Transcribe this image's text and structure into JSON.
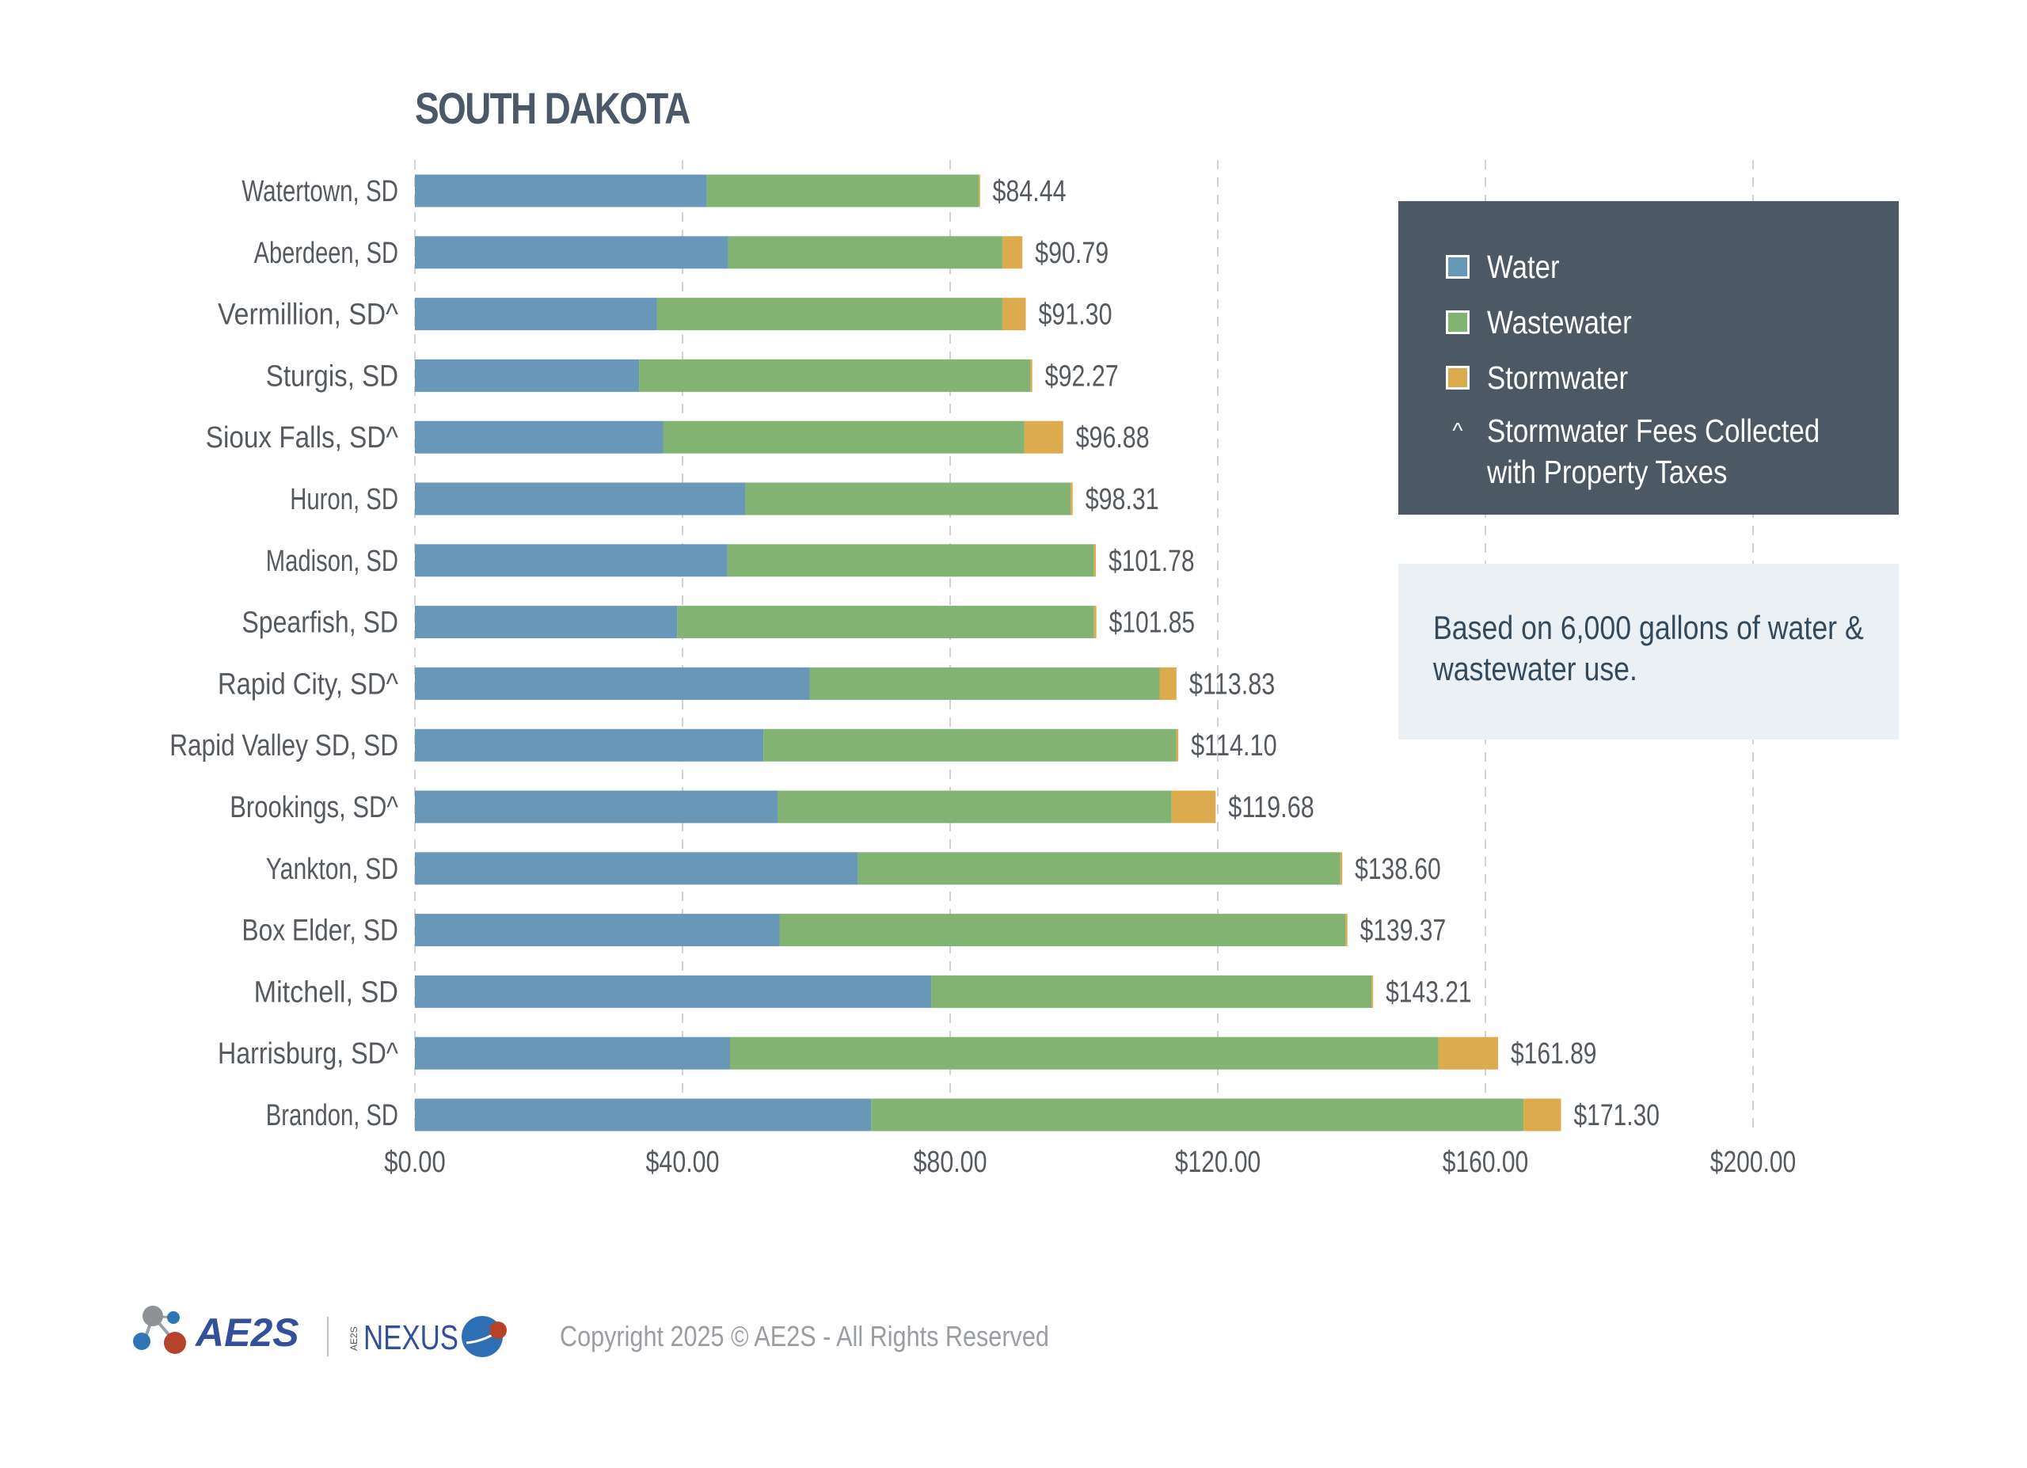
{
  "chart_data": {
    "type": "bar",
    "orientation": "horizontal",
    "stacked": true,
    "title": "SOUTH DAKOTA",
    "xlabel": "",
    "ylabel": "",
    "xlim": [
      0,
      200
    ],
    "x_ticks": [
      0,
      40,
      80,
      120,
      160,
      200
    ],
    "x_tick_labels": [
      "$0.00",
      "$40.00",
      "$80.00",
      "$120.00",
      "$160.00",
      "$200.00"
    ],
    "grid": "vertical dashed",
    "legend_position": "top-right",
    "categories": [
      "Watertown, SD",
      "Aberdeen, SD",
      "Vermillion, SD^",
      "Sturgis, SD",
      "Sioux Falls, SD^",
      "Huron, SD",
      "Madison, SD",
      "Spearfish, SD",
      "Rapid City, SD^",
      "Rapid Valley SD, SD",
      "Brookings, SD^",
      "Yankton, SD",
      "Box Elder, SD",
      "Mitchell, SD",
      "Harrisburg, SD^",
      "Brandon, SD"
    ],
    "series": [
      {
        "name": "Water",
        "color": "#6897b8",
        "values": [
          43.6,
          46.8,
          36.2,
          33.5,
          37.1,
          49.4,
          46.7,
          39.2,
          59.0,
          52.1,
          54.2,
          66.2,
          54.5,
          77.2,
          47.1,
          68.2
        ]
      },
      {
        "name": "Wastewater",
        "color": "#82b372",
        "values": [
          40.7,
          41.0,
          51.6,
          58.5,
          54.0,
          48.6,
          54.8,
          62.3,
          52.3,
          61.7,
          58.9,
          72.1,
          84.6,
          65.8,
          105.9,
          97.5
        ]
      },
      {
        "name": "Stormwater",
        "color": "#dcab4e",
        "values": [
          0.14,
          2.99,
          3.5,
          0.27,
          5.78,
          0.31,
          0.28,
          0.35,
          2.53,
          0.3,
          6.58,
          0.3,
          0.27,
          0.21,
          8.89,
          5.6
        ]
      }
    ],
    "totals": [
      84.44,
      90.79,
      91.3,
      92.27,
      96.88,
      98.31,
      101.78,
      101.85,
      113.83,
      114.1,
      119.68,
      138.6,
      139.37,
      143.21,
      161.89,
      171.3
    ],
    "total_labels": [
      "$84.44",
      "$90.79",
      "$91.30",
      "$92.27",
      "$96.88",
      "$98.31",
      "$101.78",
      "$101.85",
      "$113.83",
      "$114.10",
      "$119.68",
      "$138.60",
      "$139.37",
      "$143.21",
      "$161.89",
      "$171.30"
    ]
  },
  "legend": {
    "items": [
      {
        "label": "Water",
        "color": "#6897b8"
      },
      {
        "label": "Wastewater",
        "color": "#82b372"
      },
      {
        "label": "Stormwater",
        "color": "#dcab4e"
      }
    ],
    "note_symbol": "^",
    "note_line1": "Stormwater Fees Collected",
    "note_line2": "with Property Taxes"
  },
  "note_box": {
    "line1": "Based on 6,000 gallons of water &",
    "line2": "wastewater use."
  },
  "footer": {
    "logo_ae2s": "AE2S",
    "logo_nexus_prefix": "AE2S",
    "logo_nexus": "NEXUS",
    "copyright": "Copyright 2025 © AE2S - All Rights Reserved"
  }
}
